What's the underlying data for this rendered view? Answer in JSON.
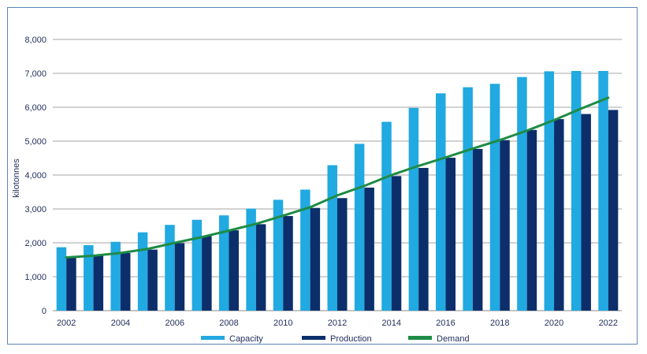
{
  "chart_data": {
    "type": "bar",
    "title": "",
    "xlabel": "",
    "ylabel": "kilotonnes",
    "ylim": [
      0,
      8000
    ],
    "yticks": [
      "0",
      "1,000",
      "2,000",
      "3,000",
      "4,000",
      "5,000",
      "6,000",
      "7,000",
      "8,000"
    ],
    "categories": [
      "2002",
      "2003",
      "2004",
      "2005",
      "2006",
      "2007",
      "2008",
      "2009",
      "2010",
      "2011",
      "2012",
      "2013",
      "2014",
      "2015",
      "2016",
      "2017",
      "2018",
      "2019",
      "2020",
      "2021",
      "2022"
    ],
    "xtick_labels": [
      "2002",
      "2004",
      "2006",
      "2008",
      "2010",
      "2012",
      "2014",
      "2016",
      "2018",
      "2020",
      "2022"
    ],
    "grid": true,
    "legend_position": "bottom",
    "series": [
      {
        "name": "Capacity",
        "kind": "bar",
        "color": "#21a9e1",
        "values": [
          1870,
          1930,
          2030,
          2310,
          2530,
          2680,
          2810,
          3010,
          3270,
          3570,
          4290,
          4920,
          5570,
          5980,
          6410,
          6590,
          6690,
          6890,
          7060,
          7070,
          7070
        ]
      },
      {
        "name": "Production",
        "kind": "bar",
        "color": "#0c2f6b",
        "values": [
          1560,
          1620,
          1700,
          1800,
          1990,
          2200,
          2370,
          2550,
          2790,
          3030,
          3320,
          3630,
          3970,
          4210,
          4510,
          4770,
          5030,
          5330,
          5650,
          5800,
          5920
        ]
      },
      {
        "name": "Demand",
        "kind": "line",
        "color": "#1e8c45",
        "values": [
          1570,
          1620,
          1700,
          1820,
          2000,
          2170,
          2360,
          2560,
          2800,
          3050,
          3400,
          3680,
          4000,
          4270,
          4520,
          4780,
          5030,
          5310,
          5620,
          5960,
          6280
        ]
      }
    ]
  }
}
